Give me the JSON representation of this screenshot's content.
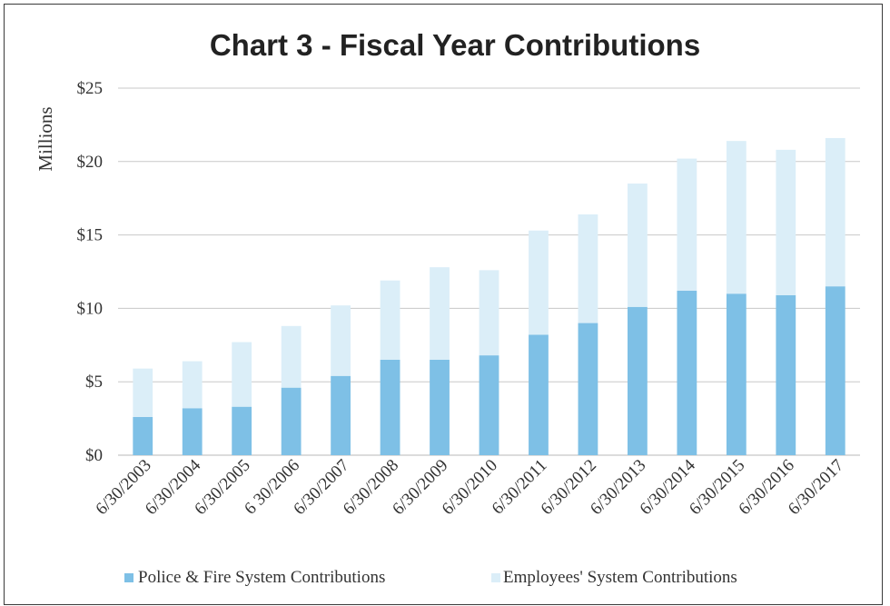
{
  "chart_data": {
    "type": "bar",
    "stacked": true,
    "title": "Chart 3 - Fiscal Year Contributions",
    "xlabel": "",
    "ylabel": "Millions",
    "ylim": [
      0,
      25
    ],
    "ytick_values": [
      0,
      5,
      10,
      15,
      20,
      25
    ],
    "ytick_labels": [
      "$0",
      "$5",
      "$10",
      "$15",
      "$20",
      "$25"
    ],
    "grid": true,
    "legend_position": "bottom",
    "categories": [
      "6/30/2003",
      "6/30/2004",
      "6/30/2005",
      "6 30/2006",
      "6/30/2007",
      "6/30/2008",
      "6/30/2009",
      "6/30/2010",
      "6/30/2011",
      "6/30/2012",
      "6/30/2013",
      "6/30/2014",
      "6/30/2015",
      "6/30/2016",
      "6/30/2017"
    ],
    "series": [
      {
        "name": "Police & Fire System Contributions",
        "color": "#7ec0e6",
        "values": [
          2.6,
          3.2,
          3.3,
          4.6,
          5.4,
          6.5,
          6.5,
          6.8,
          8.2,
          9.0,
          10.1,
          11.2,
          11.0,
          10.9,
          11.5
        ]
      },
      {
        "name": "Employees' System Contributions",
        "color": "#dbeef8",
        "values": [
          3.3,
          3.2,
          4.4,
          4.2,
          4.8,
          5.4,
          6.3,
          5.8,
          7.1,
          7.4,
          8.4,
          9.0,
          10.4,
          9.9,
          10.1
        ]
      }
    ]
  }
}
